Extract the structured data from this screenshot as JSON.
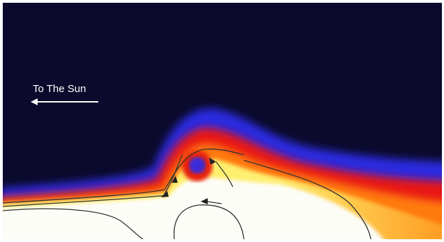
{
  "label": "To The Sun"
}
